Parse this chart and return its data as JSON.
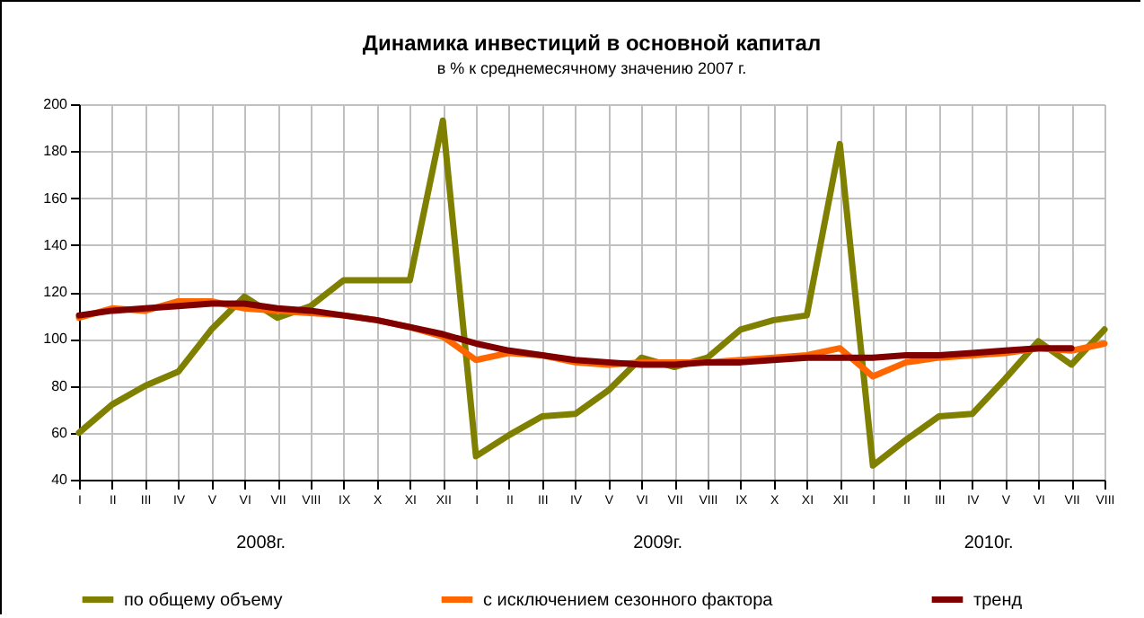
{
  "chart_data": {
    "type": "line",
    "title": "Динамика инвестиций в основной капитал",
    "subtitle": "в % к среднемесячному значению 2007 г.",
    "categories": [
      "I",
      "II",
      "III",
      "IV",
      "V",
      "VI",
      "VII",
      "VIII",
      "IX",
      "X",
      "XI",
      "XII",
      "I",
      "II",
      "III",
      "IV",
      "V",
      "VI",
      "VII",
      "VIII",
      "IX",
      "X",
      "XI",
      "XII",
      "I",
      "II",
      "III",
      "IV",
      "V",
      "VI",
      "VII",
      "VIII"
    ],
    "series": [
      {
        "name": "по общему объему",
        "color": "#808000",
        "values": [
          60,
          72,
          80,
          86,
          104,
          118,
          109,
          114,
          125,
          125,
          125,
          193,
          50,
          59,
          67,
          68,
          78,
          92,
          88,
          92,
          104,
          108,
          110,
          183,
          46,
          57,
          67,
          68,
          83,
          99,
          89,
          104
        ]
      },
      {
        "name": "с исключением сезонного фактора",
        "color": "#ff6600",
        "values": [
          109,
          113,
          112,
          116,
          116,
          113,
          112,
          111,
          110,
          108,
          105,
          101,
          91,
          94,
          93,
          90,
          89,
          90,
          90,
          90,
          91,
          92,
          93,
          96,
          84,
          90,
          92,
          93,
          94,
          96,
          95,
          98
        ]
      },
      {
        "name": "тренд",
        "color": "#800000",
        "values": [
          110,
          112,
          113,
          114,
          115,
          115,
          113,
          112,
          110,
          108,
          105,
          102,
          98,
          95,
          93,
          91,
          90,
          89,
          89,
          90,
          90,
          91,
          92,
          92,
          92,
          93,
          93,
          94,
          95,
          96,
          96,
          null
        ]
      }
    ],
    "ylim": [
      40,
      200
    ],
    "yticks": [
      40,
      60,
      80,
      100,
      120,
      140,
      160,
      180,
      200
    ],
    "grid": true,
    "legend": "bottom",
    "annotations": [
      "2008г.",
      "2009г.",
      "2010г."
    ]
  }
}
